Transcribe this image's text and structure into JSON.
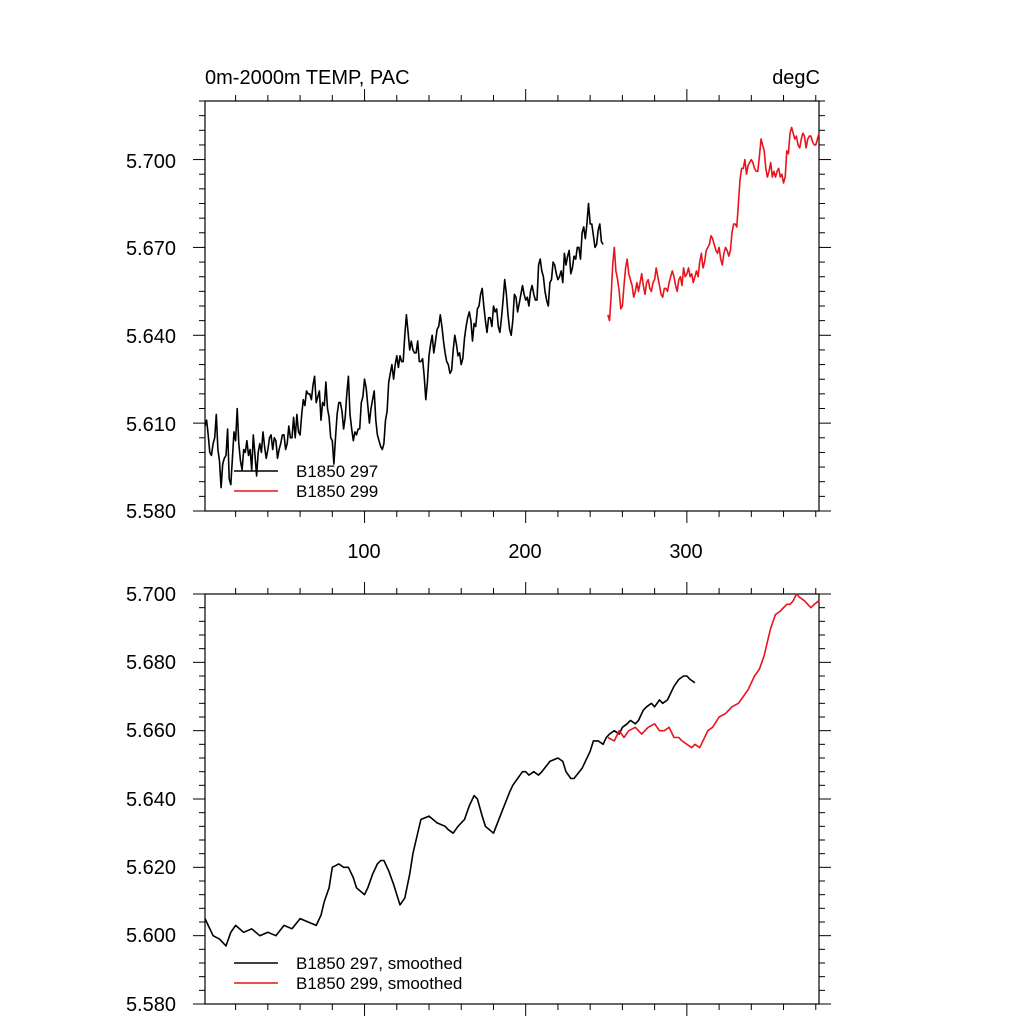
{
  "colors": {
    "series_297": "#000000",
    "series_299": "#e8141c",
    "axis": "#000000",
    "background": "#ffffff"
  },
  "chart_data": [
    {
      "type": "line",
      "title": "0m-2000m TEMP, PAC",
      "units": "degC",
      "xlim": [
        1,
        382
      ],
      "ylim": [
        5.58,
        5.72
      ],
      "yticks": [
        "5.580",
        "5.610",
        "5.640",
        "5.670",
        "5.700"
      ],
      "xticks": [
        "100",
        "200",
        "300"
      ],
      "legend": {
        "position": "bottom-left",
        "entries": [
          "B1850 297",
          "B1850 299"
        ]
      },
      "series": [
        {
          "name": "B1850 297",
          "color": "#000000",
          "x_start": 1,
          "values": [
            5.609,
            5.611,
            5.606,
            5.6,
            5.599,
            5.603,
            5.605,
            5.613,
            5.601,
            5.597,
            5.588,
            5.596,
            5.598,
            5.599,
            5.608,
            5.591,
            5.589,
            5.598,
            5.607,
            5.604,
            5.615,
            5.603,
            5.597,
            5.594,
            5.601,
            5.6,
            5.604,
            5.599,
            5.601,
            5.594,
            5.606,
            5.599,
            5.592,
            5.6,
            5.603,
            5.6,
            5.607,
            5.602,
            5.598,
            5.601,
            5.605,
            5.606,
            5.601,
            5.605,
            5.604,
            5.598,
            5.601,
            5.603,
            5.606,
            5.606,
            5.601,
            5.603,
            5.609,
            5.605,
            5.605,
            5.612,
            5.605,
            5.613,
            5.607,
            5.606,
            5.613,
            5.618,
            5.616,
            5.621,
            5.62,
            5.62,
            5.618,
            5.623,
            5.626,
            5.617,
            5.619,
            5.621,
            5.611,
            5.617,
            5.616,
            5.624,
            5.615,
            5.612,
            5.605,
            5.604,
            5.596,
            5.605,
            5.613,
            5.617,
            5.617,
            5.614,
            5.608,
            5.612,
            5.62,
            5.626,
            5.613,
            5.608,
            5.604,
            5.607,
            5.606,
            5.608,
            5.608,
            5.617,
            5.619,
            5.625,
            5.622,
            5.616,
            5.61,
            5.615,
            5.618,
            5.621,
            5.611,
            5.606,
            5.604,
            5.602,
            5.601,
            5.603,
            5.611,
            5.614,
            5.624,
            5.627,
            5.63,
            5.625,
            5.63,
            5.633,
            5.629,
            5.633,
            5.631,
            5.631,
            5.64,
            5.647,
            5.641,
            5.635,
            5.638,
            5.635,
            5.634,
            5.634,
            5.638,
            5.631,
            5.631,
            5.632,
            5.626,
            5.618,
            5.624,
            5.633,
            5.637,
            5.64,
            5.634,
            5.638,
            5.642,
            5.643,
            5.647,
            5.643,
            5.638,
            5.634,
            5.631,
            5.63,
            5.627,
            5.628,
            5.635,
            5.64,
            5.637,
            5.633,
            5.634,
            5.63,
            5.632,
            5.639,
            5.643,
            5.646,
            5.648,
            5.645,
            5.638,
            5.644,
            5.643,
            5.649,
            5.65,
            5.654,
            5.656,
            5.65,
            5.645,
            5.641,
            5.646,
            5.646,
            5.643,
            5.65,
            5.648,
            5.649,
            5.643,
            5.641,
            5.646,
            5.652,
            5.659,
            5.654,
            5.647,
            5.642,
            5.64,
            5.645,
            5.654,
            5.653,
            5.648,
            5.651,
            5.654,
            5.657,
            5.654,
            5.652,
            5.653,
            5.65,
            5.655,
            5.657,
            5.654,
            5.652,
            5.652,
            5.664,
            5.666,
            5.662,
            5.66,
            5.655,
            5.652,
            5.65,
            5.658,
            5.659,
            5.665,
            5.664,
            5.661,
            5.659,
            5.66,
            5.662,
            5.658,
            5.668,
            5.664,
            5.667,
            5.669,
            5.661,
            5.663,
            5.667,
            5.666,
            5.67,
            5.67,
            5.666,
            5.675,
            5.677,
            5.673,
            5.678,
            5.685,
            5.678,
            5.678,
            5.674,
            5.67,
            5.671,
            5.676,
            5.678,
            5.672,
            5.671
          ]
        },
        {
          "name": "B1850 299",
          "color": "#e8141c",
          "x_start": 251,
          "values": [
            5.647,
            5.645,
            5.653,
            5.664,
            5.67,
            5.662,
            5.659,
            5.655,
            5.649,
            5.65,
            5.657,
            5.663,
            5.666,
            5.661,
            5.659,
            5.657,
            5.653,
            5.655,
            5.658,
            5.655,
            5.658,
            5.661,
            5.657,
            5.654,
            5.658,
            5.659,
            5.656,
            5.655,
            5.658,
            5.659,
            5.663,
            5.66,
            5.657,
            5.654,
            5.653,
            5.656,
            5.656,
            5.655,
            5.658,
            5.66,
            5.662,
            5.66,
            5.657,
            5.655,
            5.659,
            5.66,
            5.657,
            5.663,
            5.66,
            5.661,
            5.663,
            5.66,
            5.661,
            5.658,
            5.66,
            5.662,
            5.66,
            5.665,
            5.668,
            5.663,
            5.665,
            5.669,
            5.67,
            5.671,
            5.674,
            5.673,
            5.671,
            5.669,
            5.668,
            5.67,
            5.666,
            5.664,
            5.668,
            5.67,
            5.669,
            5.667,
            5.669,
            5.675,
            5.678,
            5.678,
            5.677,
            5.685,
            5.693,
            5.697,
            5.697,
            5.7,
            5.695,
            5.698,
            5.699,
            5.7,
            5.699,
            5.697,
            5.696,
            5.696,
            5.701,
            5.707,
            5.705,
            5.703,
            5.697,
            5.694,
            5.696,
            5.699,
            5.694,
            5.696,
            5.694,
            5.696,
            5.697,
            5.694,
            5.695,
            5.692,
            5.694,
            5.703,
            5.702,
            5.709,
            5.711,
            5.709,
            5.707,
            5.708,
            5.705,
            5.704,
            5.707,
            5.709,
            5.708,
            5.704,
            5.707,
            5.708,
            5.708,
            5.706,
            5.705,
            5.705,
            5.707,
            5.709
          ]
        }
      ]
    },
    {
      "type": "line",
      "title": "",
      "xlim": [
        1,
        382
      ],
      "ylim": [
        5.58,
        5.7
      ],
      "yticks": [
        "5.580",
        "5.600",
        "5.620",
        "5.640",
        "5.660",
        "5.680",
        "5.700"
      ],
      "legend": {
        "position": "bottom-left",
        "entries": [
          "B1850 297, smoothed",
          "B1850 299, smoothed"
        ]
      },
      "series": [
        {
          "name": "B1850 297, smoothed",
          "color": "#000000",
          "x": [
            1,
            6,
            10,
            14,
            17,
            20,
            25,
            30,
            35,
            40,
            45,
            50,
            55,
            60,
            65,
            70,
            73,
            75,
            78,
            80,
            84,
            87,
            90,
            93,
            95,
            100,
            102,
            105,
            108,
            110,
            112,
            115,
            118,
            120,
            122,
            125,
            128,
            130,
            132,
            135,
            140,
            145,
            150,
            152,
            155,
            158,
            160,
            162,
            165,
            168,
            170,
            173,
            175,
            180,
            185,
            190,
            192,
            195,
            198,
            200,
            202,
            205,
            208,
            210,
            215,
            220,
            223,
            225,
            228,
            230,
            235,
            240,
            242,
            245,
            248,
            250,
            252,
            255,
            258,
            260,
            263,
            265,
            268,
            270,
            273,
            275,
            278,
            280,
            283,
            285,
            288,
            290,
            292,
            295,
            298,
            300,
            302,
            305
          ],
          "values": [
            5.605,
            5.6,
            5.599,
            5.597,
            5.601,
            5.603,
            5.601,
            5.602,
            5.6,
            5.601,
            5.6,
            5.603,
            5.602,
            5.605,
            5.604,
            5.603,
            5.606,
            5.61,
            5.614,
            5.62,
            5.621,
            5.62,
            5.62,
            5.617,
            5.614,
            5.612,
            5.614,
            5.618,
            5.621,
            5.622,
            5.622,
            5.619,
            5.615,
            5.612,
            5.609,
            5.611,
            5.618,
            5.624,
            5.628,
            5.634,
            5.635,
            5.633,
            5.632,
            5.631,
            5.63,
            5.632,
            5.633,
            5.634,
            5.638,
            5.641,
            5.64,
            5.635,
            5.632,
            5.63,
            5.636,
            5.642,
            5.644,
            5.646,
            5.648,
            5.648,
            5.647,
            5.648,
            5.647,
            5.648,
            5.651,
            5.652,
            5.651,
            5.648,
            5.646,
            5.646,
            5.649,
            5.654,
            5.657,
            5.657,
            5.656,
            5.658,
            5.659,
            5.66,
            5.659,
            5.661,
            5.662,
            5.663,
            5.662,
            5.663,
            5.666,
            5.667,
            5.668,
            5.667,
            5.669,
            5.668,
            5.669,
            5.671,
            5.673,
            5.675,
            5.676,
            5.676,
            5.675,
            5.674
          ]
        },
        {
          "name": "B1850 299, smoothed",
          "color": "#e8141c",
          "x": [
            251,
            255,
            258,
            261,
            264,
            268,
            272,
            276,
            280,
            283,
            286,
            289,
            292,
            295,
            297,
            300,
            303,
            305,
            308,
            311,
            313,
            316,
            320,
            324,
            328,
            332,
            335,
            338,
            340,
            342,
            345,
            348,
            350,
            352,
            355,
            358,
            360,
            362,
            364,
            366,
            368,
            370,
            373,
            375,
            377,
            379,
            382
          ],
          "values": [
            5.658,
            5.657,
            5.66,
            5.658,
            5.66,
            5.661,
            5.659,
            5.661,
            5.662,
            5.66,
            5.66,
            5.661,
            5.658,
            5.658,
            5.657,
            5.656,
            5.655,
            5.656,
            5.655,
            5.658,
            5.66,
            5.661,
            5.664,
            5.665,
            5.667,
            5.668,
            5.67,
            5.672,
            5.674,
            5.676,
            5.678,
            5.682,
            5.686,
            5.69,
            5.694,
            5.695,
            5.696,
            5.697,
            5.697,
            5.698,
            5.7,
            5.699,
            5.698,
            5.697,
            5.696,
            5.697,
            5.698
          ]
        }
      ]
    }
  ]
}
